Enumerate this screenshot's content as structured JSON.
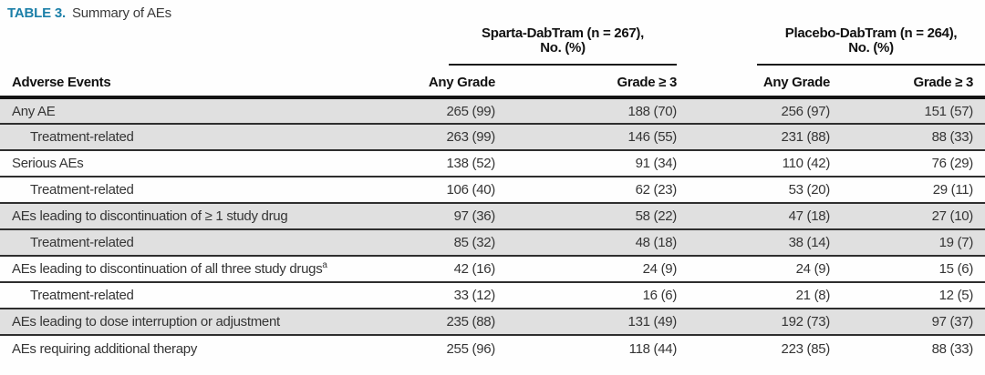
{
  "title": {
    "label": "TABLE 3.",
    "text": "Summary of AEs"
  },
  "colors": {
    "accent_teal": "#1b7fa8",
    "row_shade": "#e0e0e0",
    "rule": "#1a1a1a",
    "body_text": "#353535"
  },
  "table": {
    "row_header": "Adverse Events",
    "groups": [
      {
        "name": "Sparta-DabTram (n = 267),",
        "name_line2": "No. (%)",
        "subcols": [
          "Any Grade",
          "Grade ≥ 3"
        ]
      },
      {
        "name": "Placebo-DabTram (n = 264),",
        "name_line2": "No. (%)",
        "subcols": [
          "Any Grade",
          "Grade ≥ 3"
        ]
      }
    ],
    "rows": [
      {
        "label": "Any AE",
        "indent": false,
        "shaded": true,
        "values": [
          "265 (99)",
          "188 (70)",
          "256 (97)",
          "151 (57)"
        ]
      },
      {
        "label": "Treatment-related",
        "indent": true,
        "shaded": true,
        "values": [
          "263 (99)",
          "146 (55)",
          "231 (88)",
          "88 (33)"
        ]
      },
      {
        "label": "Serious AEs",
        "indent": false,
        "shaded": false,
        "values": [
          "138 (52)",
          "91 (34)",
          "110 (42)",
          "76 (29)"
        ]
      },
      {
        "label": "Treatment-related",
        "indent": true,
        "shaded": false,
        "values": [
          "106 (40)",
          "62 (23)",
          "53 (20)",
          "29 (11)"
        ]
      },
      {
        "label": "AEs leading to discontinuation of ≥ 1 study drug",
        "indent": false,
        "shaded": true,
        "values": [
          "97 (36)",
          "58 (22)",
          "47 (18)",
          "27 (10)"
        ]
      },
      {
        "label": "Treatment-related",
        "indent": true,
        "shaded": true,
        "values": [
          "85 (32)",
          "48 (18)",
          "38 (14)",
          "19 (7)"
        ]
      },
      {
        "label": "AEs leading to discontinuation of all three study drugs",
        "sup": "a",
        "indent": false,
        "shaded": false,
        "values": [
          "42 (16)",
          "24 (9)",
          "24 (9)",
          "15 (6)"
        ]
      },
      {
        "label": "Treatment-related",
        "indent": true,
        "shaded": false,
        "values": [
          "33 (12)",
          "16 (6)",
          "21 (8)",
          "12 (5)"
        ]
      },
      {
        "label": "AEs leading to dose interruption or adjustment",
        "indent": false,
        "shaded": true,
        "values": [
          "235 (88)",
          "131 (49)",
          "192 (73)",
          "97 (37)"
        ]
      },
      {
        "label": "AEs requiring additional therapy",
        "indent": false,
        "shaded": false,
        "values": [
          "255 (96)",
          "118 (44)",
          "223 (85)",
          "88 (33)"
        ]
      }
    ]
  }
}
